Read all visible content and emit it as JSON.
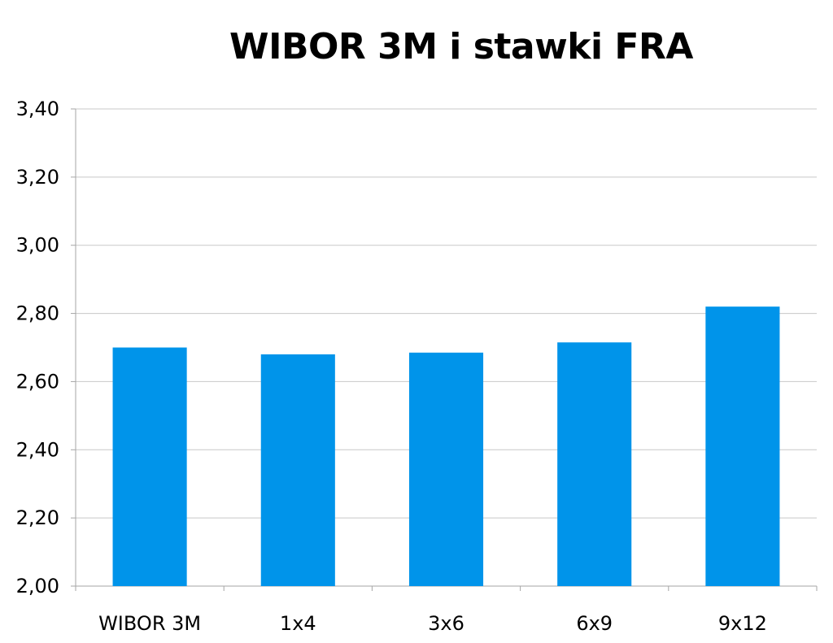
{
  "chart_data": {
    "type": "bar",
    "title": "WIBOR 3M i stawki FRA",
    "xlabel": "",
    "ylabel": "",
    "categories": [
      "WIBOR 3M",
      "1x4",
      "3x6",
      "6x9",
      "9x12"
    ],
    "values": [
      2.7,
      2.68,
      2.685,
      2.715,
      2.82
    ],
    "ylim": [
      2.0,
      3.4
    ],
    "yticks": [
      "2,00",
      "2,20",
      "2,40",
      "2,60",
      "2,80",
      "3,00",
      "3,20",
      "3,40"
    ],
    "grid": true,
    "legend": "none",
    "bar_color": "#0094ea"
  }
}
